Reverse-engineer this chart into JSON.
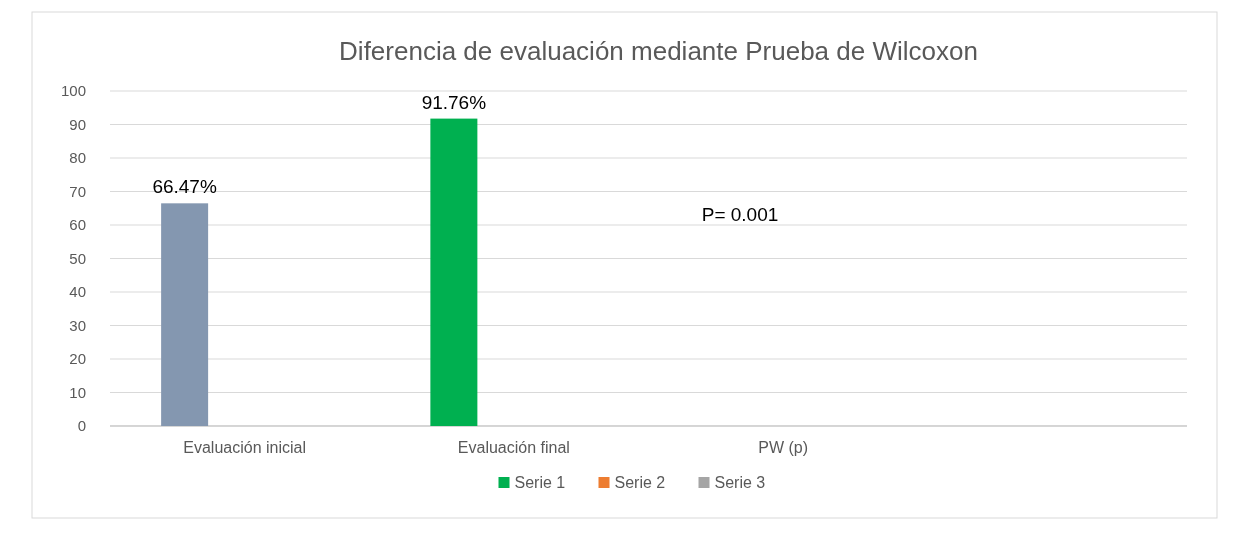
{
  "chart_data": {
    "type": "bar",
    "title": "Diferencia de evaluación mediante Prueba de Wilcoxon",
    "categories": [
      "Evaluación inicial",
      "Evaluación final",
      "PW (p)",
      null
    ],
    "series": [
      {
        "name": "Serie 1",
        "color": "#00b050",
        "colors": [
          "#8497b0",
          "#00b050",
          null,
          null
        ],
        "values": [
          66.47,
          91.76,
          null,
          null
        ],
        "value_labels": [
          "66.47%",
          "91.76%",
          null,
          null
        ]
      },
      {
        "name": "Serie 2",
        "color": "#ed7d31",
        "values": [
          null,
          null,
          null,
          null
        ]
      },
      {
        "name": "Serie 3",
        "color": "#a5a5a5",
        "values": [
          null,
          null,
          null,
          null
        ]
      }
    ],
    "ylim": [
      0,
      100
    ],
    "yticks": [
      0,
      10,
      20,
      30,
      40,
      50,
      60,
      70,
      80,
      90,
      100
    ],
    "grid": "y",
    "legend": "bottom",
    "annotations": [
      "P= 0.001"
    ]
  }
}
